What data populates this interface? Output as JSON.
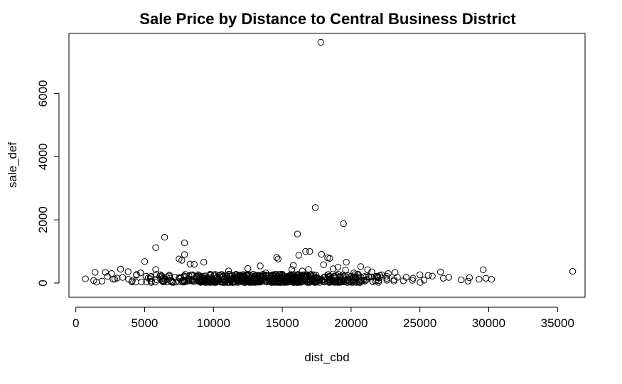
{
  "chart_data": {
    "type": "scatter",
    "title": "Sale Price by Distance to Central Business District",
    "xlabel": "dist_cbd",
    "ylabel": "sale_def",
    "xlim": [
      -500,
      37000
    ],
    "ylim": [
      -450,
      7900
    ],
    "xticks": [
      0,
      5000,
      10000,
      15000,
      20000,
      25000,
      30000,
      35000
    ],
    "yticks": [
      0,
      2000,
      4000,
      6000
    ],
    "grid": false,
    "legend": "none",
    "points": [
      [
        17800,
        7620
      ],
      [
        17400,
        2390
      ],
      [
        19450,
        1880
      ],
      [
        16100,
        1550
      ],
      [
        6450,
        1450
      ],
      [
        7900,
        1270
      ],
      [
        5800,
        1120
      ],
      [
        17000,
        1000
      ],
      [
        16700,
        1000
      ],
      [
        7900,
        900
      ],
      [
        16200,
        880
      ],
      [
        17850,
        910
      ],
      [
        18450,
        780
      ],
      [
        18300,
        800
      ],
      [
        14600,
        810
      ],
      [
        14700,
        760
      ],
      [
        7500,
        760
      ],
      [
        7700,
        720
      ],
      [
        5000,
        680
      ],
      [
        9300,
        660
      ],
      [
        19650,
        660
      ],
      [
        8300,
        600
      ],
      [
        8600,
        590
      ],
      [
        15800,
        560
      ],
      [
        18000,
        580
      ],
      [
        13400,
        540
      ],
      [
        19050,
        500
      ],
      [
        12500,
        460
      ],
      [
        3250,
        440
      ],
      [
        5800,
        430
      ],
      [
        20700,
        520
      ],
      [
        29600,
        420
      ],
      [
        36100,
        370
      ],
      [
        1400,
        340
      ],
      [
        2150,
        340
      ],
      [
        2600,
        300
      ],
      [
        26500,
        350
      ],
      [
        25600,
        240
      ],
      [
        25900,
        220
      ],
      [
        26700,
        150
      ],
      [
        27100,
        180
      ],
      [
        28000,
        100
      ],
      [
        28600,
        170
      ],
      [
        28500,
        60
      ],
      [
        29300,
        120
      ],
      [
        29800,
        150
      ],
      [
        30200,
        120
      ],
      [
        700,
        130
      ],
      [
        1300,
        80
      ],
      [
        1500,
        30
      ],
      [
        2300,
        210
      ],
      [
        3000,
        160
      ],
      [
        4400,
        250
      ],
      [
        6100,
        210
      ],
      [
        11100,
        380
      ],
      [
        15700,
        430
      ],
      [
        16900,
        430
      ],
      [
        21200,
        420
      ],
      [
        24000,
        180
      ],
      [
        24500,
        150
      ],
      [
        25000,
        260
      ],
      [
        23200,
        330
      ],
      [
        22700,
        300
      ],
      [
        22100,
        180
      ],
      [
        21500,
        350
      ],
      [
        20200,
        320
      ],
      [
        19600,
        410
      ],
      [
        18700,
        450
      ],
      [
        17300,
        260
      ],
      [
        16450,
        380
      ],
      [
        14300,
        260
      ],
      [
        13800,
        320
      ],
      [
        12900,
        280
      ],
      [
        12000,
        200
      ],
      [
        10600,
        270
      ],
      [
        9900,
        150
      ],
      [
        8900,
        230
      ],
      [
        7200,
        180
      ],
      [
        6800,
        250
      ],
      [
        4700,
        320
      ],
      [
        3800,
        360
      ],
      [
        2700,
        120
      ],
      [
        1900,
        60
      ],
      [
        4100,
        70
      ],
      [
        5500,
        60
      ],
      [
        6500,
        90
      ],
      [
        10300,
        80
      ],
      [
        13100,
        90
      ],
      [
        15200,
        60
      ],
      [
        16600,
        70
      ],
      [
        18900,
        80
      ],
      [
        20600,
        50
      ],
      [
        22600,
        90
      ],
      [
        23800,
        70
      ],
      [
        25300,
        90
      ]
    ],
    "dense_band": {
      "x_range": [
        1500,
        26000
      ],
      "y_range": [
        20,
        280
      ],
      "point_count": 650
    }
  }
}
